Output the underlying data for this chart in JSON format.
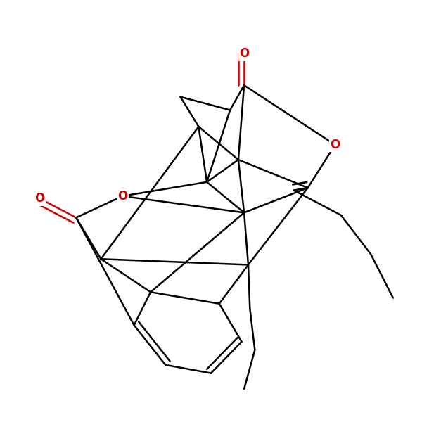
{
  "figsize": [
    6.0,
    6.0
  ],
  "dpi": 100,
  "bg": "#ffffff",
  "blk": "#000000",
  "red": "#cc0000",
  "lw": 1.8,
  "off": 0.012
}
